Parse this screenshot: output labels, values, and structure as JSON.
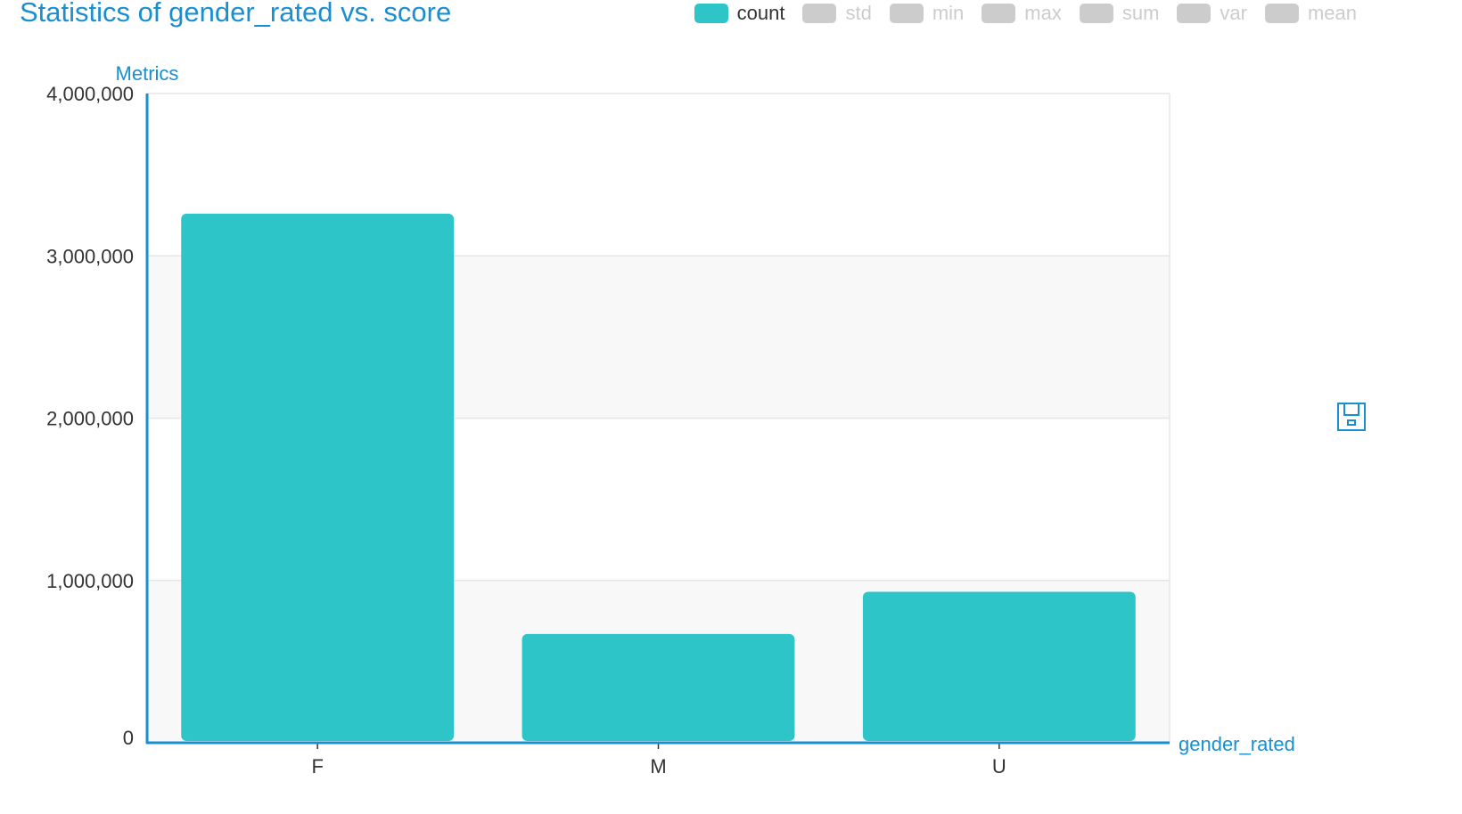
{
  "chart_data": {
    "type": "bar",
    "title": "Statistics of gender_rated vs. score",
    "xlabel": "gender_rated",
    "ylabel": "Metrics",
    "categories": [
      "F",
      "M",
      "U"
    ],
    "series": [
      {
        "name": "count",
        "values": [
          3260000,
          670000,
          930000
        ],
        "active": true
      },
      {
        "name": "std",
        "active": false
      },
      {
        "name": "min",
        "active": false
      },
      {
        "name": "max",
        "active": false
      },
      {
        "name": "sum",
        "active": false
      },
      {
        "name": "var",
        "active": false
      },
      {
        "name": "mean",
        "active": false
      }
    ],
    "ylim": [
      0,
      4000000
    ],
    "yticks": [
      0,
      1000000,
      2000000,
      3000000,
      4000000
    ],
    "ytick_labels": [
      "0",
      "1,000,000",
      "2,000,000",
      "3,000,000",
      "4,000,000"
    ],
    "grid": true,
    "legend_position": "top-right"
  },
  "colors": {
    "bar": "#2ec5c8",
    "inactive": "#cccccc",
    "axis": "#1a8fd0",
    "title": "#1a8fd0",
    "band": "#f8f8f8",
    "grid": "#e6e6e6"
  },
  "toolbox": {
    "icon": "save-icon"
  }
}
